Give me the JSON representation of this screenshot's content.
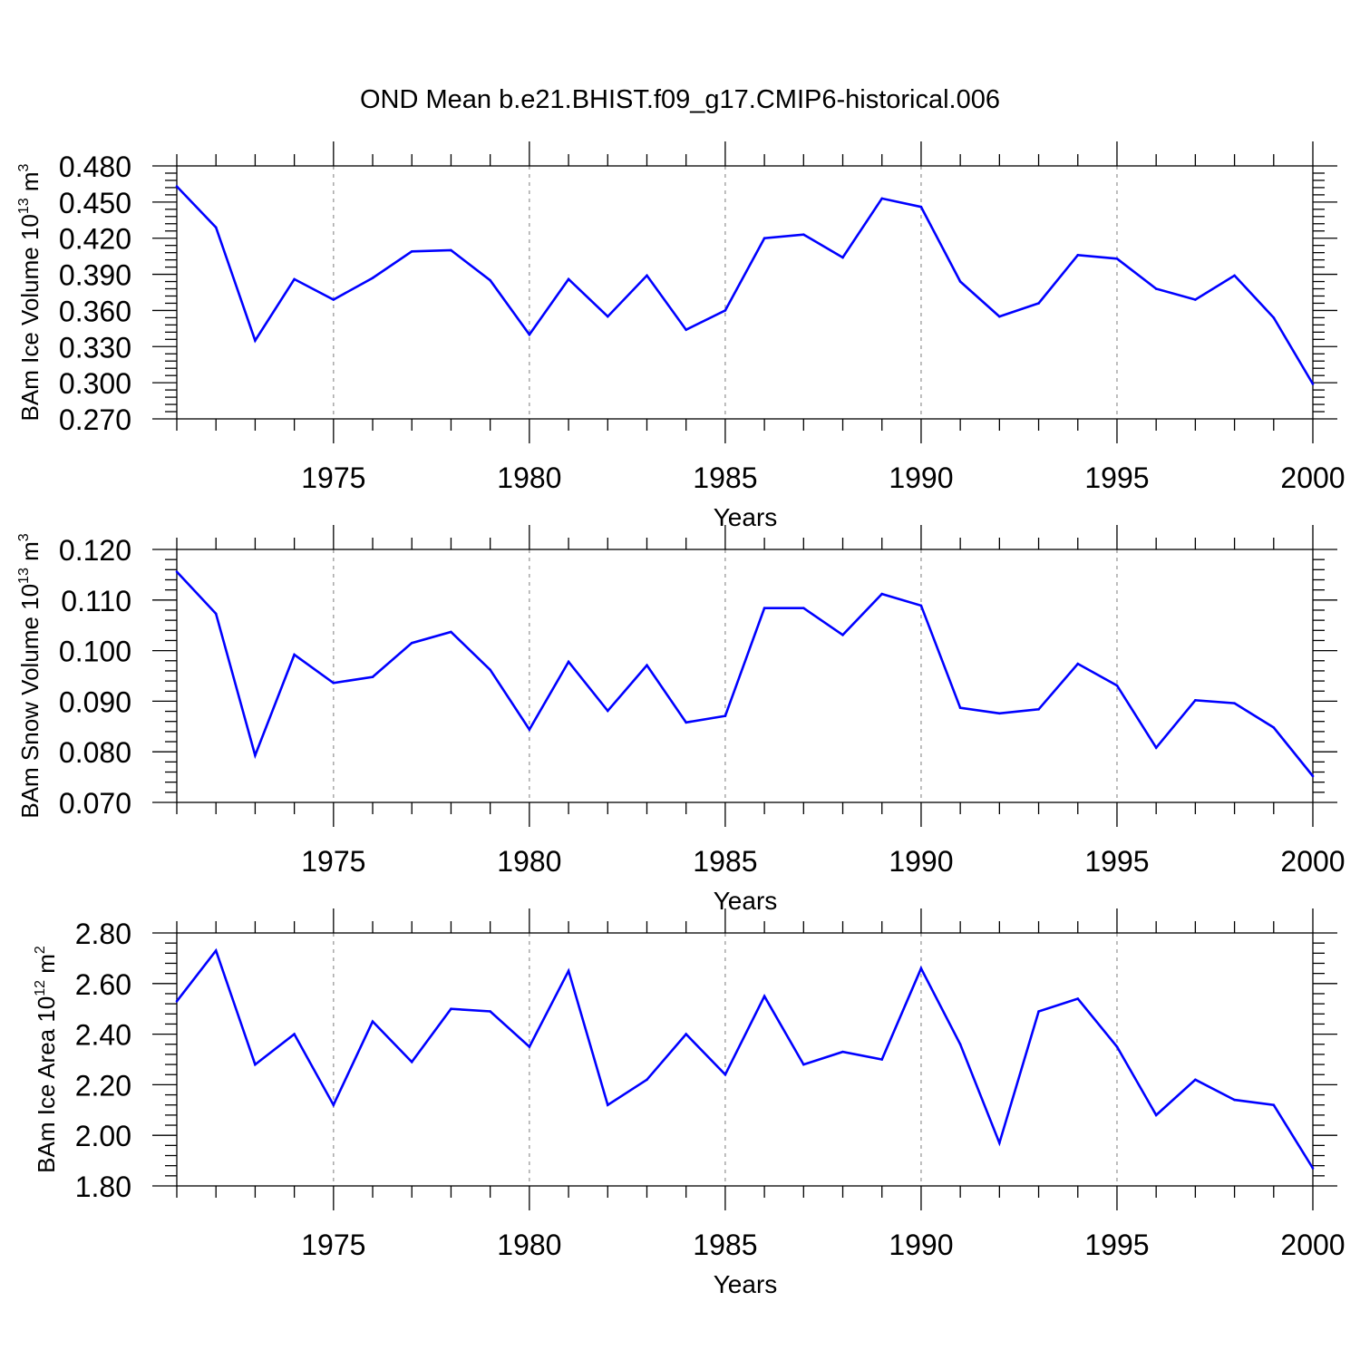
{
  "title": "OND Mean b.e21.BHIST.f09_g17.CMIP6-historical.006",
  "line_color": "#0000ff",
  "chart_data": [
    {
      "type": "line",
      "xlabel": "Years",
      "ylabel": {
        "main": "BAm Ice Volume 10",
        "exp": "13",
        "unit": " m",
        "unit_exp": "3"
      },
      "xlim": [
        1971,
        2000
      ],
      "ylim": [
        0.27,
        0.48
      ],
      "xticks": [
        1975,
        1980,
        1985,
        1990,
        1995,
        2000
      ],
      "yticks": [
        0.27,
        0.3,
        0.33,
        0.36,
        0.39,
        0.42,
        0.45,
        0.48
      ],
      "ytick_labels": [
        "0.270",
        "0.300",
        "0.330",
        "0.360",
        "0.390",
        "0.420",
        "0.450",
        "0.480"
      ],
      "grid": "vertical dashed",
      "x": [
        1971,
        1972,
        1973,
        1974,
        1975,
        1976,
        1977,
        1978,
        1979,
        1980,
        1981,
        1982,
        1983,
        1984,
        1985,
        1986,
        1987,
        1988,
        1989,
        1990,
        1991,
        1992,
        1993,
        1994,
        1995,
        1996,
        1997,
        1998,
        1999,
        2000
      ],
      "values": [
        0.463,
        0.429,
        0.335,
        0.386,
        0.369,
        0.387,
        0.409,
        0.41,
        0.385,
        0.34,
        0.386,
        0.355,
        0.389,
        0.344,
        0.36,
        0.42,
        0.423,
        0.404,
        0.453,
        0.446,
        0.384,
        0.355,
        0.366,
        0.406,
        0.403,
        0.378,
        0.369,
        0.389,
        0.354,
        0.299
      ]
    },
    {
      "type": "line",
      "xlabel": "Years",
      "ylabel": {
        "main": "BAm Snow Volume 10",
        "exp": "13",
        "unit": " m",
        "unit_exp": "3"
      },
      "xlim": [
        1971,
        2000
      ],
      "ylim": [
        0.07,
        0.12
      ],
      "xticks": [
        1975,
        1980,
        1985,
        1990,
        1995,
        2000
      ],
      "yticks": [
        0.07,
        0.08,
        0.09,
        0.1,
        0.11,
        0.12
      ],
      "ytick_labels": [
        "0.070",
        "0.080",
        "0.090",
        "0.100",
        "0.110",
        "0.120"
      ],
      "grid": "vertical dashed",
      "x": [
        1971,
        1972,
        1973,
        1974,
        1975,
        1976,
        1977,
        1978,
        1979,
        1980,
        1981,
        1982,
        1983,
        1984,
        1985,
        1986,
        1987,
        1988,
        1989,
        1990,
        1991,
        1992,
        1993,
        1994,
        1995,
        1996,
        1997,
        1998,
        1999,
        2000
      ],
      "values": [
        0.1156,
        0.1073,
        0.0793,
        0.0992,
        0.0936,
        0.0948,
        0.1015,
        0.1037,
        0.0962,
        0.0844,
        0.0978,
        0.0881,
        0.0971,
        0.0858,
        0.0871,
        0.1084,
        0.1084,
        0.1031,
        0.1112,
        0.1089,
        0.0887,
        0.0876,
        0.0884,
        0.0974,
        0.0931,
        0.0808,
        0.0902,
        0.0896,
        0.0848,
        0.0752
      ]
    },
    {
      "type": "line",
      "xlabel": "Years",
      "ylabel": {
        "main": "BAm Ice Area 10",
        "exp": "12",
        "unit": " m",
        "unit_exp": "2"
      },
      "xlim": [
        1971,
        2000
      ],
      "ylim": [
        1.8,
        2.8
      ],
      "xticks": [
        1975,
        1980,
        1985,
        1990,
        1995,
        2000
      ],
      "yticks": [
        1.8,
        2.0,
        2.2,
        2.4,
        2.6,
        2.8
      ],
      "ytick_labels": [
        "1.80",
        "2.00",
        "2.20",
        "2.40",
        "2.60",
        "2.80"
      ],
      "grid": "vertical dashed",
      "x": [
        1971,
        1972,
        1973,
        1974,
        1975,
        1976,
        1977,
        1978,
        1979,
        1980,
        1981,
        1982,
        1983,
        1984,
        1985,
        1986,
        1987,
        1988,
        1989,
        1990,
        1991,
        1992,
        1993,
        1994,
        1995,
        1996,
        1997,
        1998,
        1999,
        2000
      ],
      "values": [
        2.53,
        2.73,
        2.28,
        2.4,
        2.12,
        2.45,
        2.29,
        2.5,
        2.49,
        2.35,
        2.65,
        2.12,
        2.22,
        2.4,
        2.24,
        2.55,
        2.28,
        2.33,
        2.3,
        2.66,
        2.36,
        1.97,
        2.49,
        2.54,
        2.35,
        2.08,
        2.22,
        2.14,
        2.12,
        1.87
      ]
    }
  ]
}
